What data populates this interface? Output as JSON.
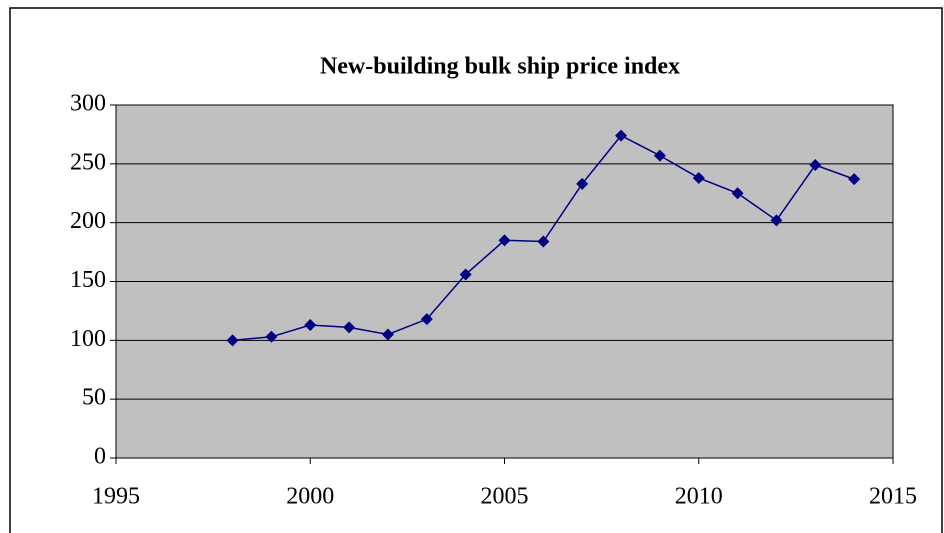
{
  "chart_data": {
    "type": "line",
    "title": "New-building bulk ship price index",
    "x": [
      1998,
      1999,
      2000,
      2001,
      2002,
      2003,
      2004,
      2005,
      2006,
      2007,
      2008,
      2009,
      2010,
      2011,
      2012,
      2013,
      2014
    ],
    "values": [
      100,
      103,
      113,
      111,
      105,
      118,
      156,
      185,
      184,
      233,
      274,
      257,
      238,
      225,
      202,
      249,
      237
    ],
    "color": "#000080",
    "xlim": [
      1995,
      2015
    ],
    "xticks": [
      1995,
      2000,
      2005,
      2010,
      2015
    ],
    "ylim": [
      0,
      300
    ],
    "yticks": [
      0,
      50,
      100,
      150,
      200,
      250,
      300
    ],
    "grid": true
  }
}
